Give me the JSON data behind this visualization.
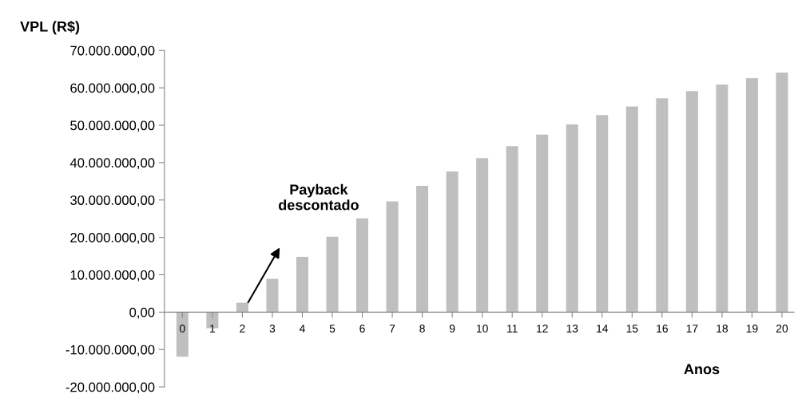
{
  "chart_data": {
    "type": "bar",
    "ylabel": "VPL (R$)",
    "xlabel": "Anos",
    "categories": [
      "0",
      "1",
      "2",
      "3",
      "4",
      "5",
      "6",
      "7",
      "8",
      "9",
      "10",
      "11",
      "12",
      "13",
      "14",
      "15",
      "16",
      "17",
      "18",
      "19",
      "20"
    ],
    "values": [
      -11900000,
      -4300000,
      2500000,
      8900000,
      14800000,
      20200000,
      25100000,
      29600000,
      33800000,
      37600000,
      41200000,
      44400000,
      47500000,
      50200000,
      52700000,
      55000000,
      57200000,
      59100000,
      60900000,
      62600000,
      64100000
    ],
    "color": "#bfbfbf",
    "ylim": [
      -20000000,
      70000000
    ],
    "yticks": [
      {
        "value": -20000000,
        "label": "-20.000.000,00"
      },
      {
        "value": -10000000,
        "label": "-10.000.000,00"
      },
      {
        "value": 0,
        "label": "0,00"
      },
      {
        "value": 10000000,
        "label": "10.000.000,00"
      },
      {
        "value": 20000000,
        "label": "20.000.000,00"
      },
      {
        "value": 30000000,
        "label": "30.000.000,00"
      },
      {
        "value": 40000000,
        "label": "40.000.000,00"
      },
      {
        "value": 50000000,
        "label": "50.000.000,00"
      },
      {
        "value": 60000000,
        "label": "60.000.000,00"
      },
      {
        "value": 70000000,
        "label": "70.000.000,00"
      }
    ],
    "grid": false,
    "annotations": [
      "Payback\ndescontado"
    ]
  }
}
